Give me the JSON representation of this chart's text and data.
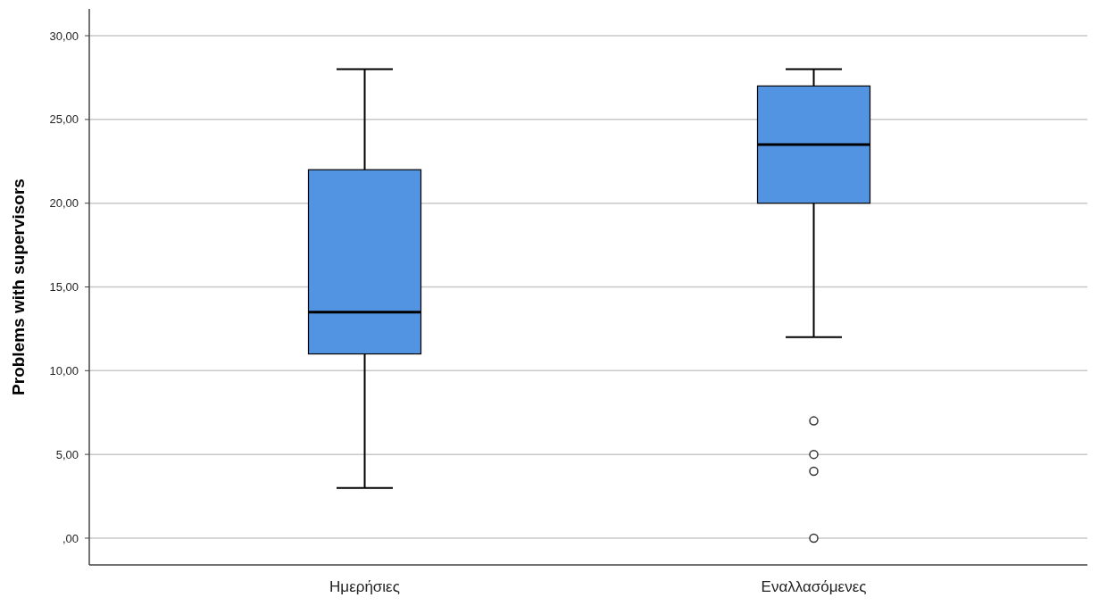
{
  "chart_data": {
    "type": "box",
    "ylabel": "Problems with supervisors",
    "categories": [
      "Ημερήσιες",
      "Εναλλασόμενες"
    ],
    "boxes": [
      {
        "low": 3,
        "q1": 11,
        "median": 13.5,
        "q3": 22,
        "high": 28
      },
      {
        "low": 12,
        "q1": 20,
        "median": 23.5,
        "q3": 27,
        "high": 28,
        "outliers": [
          7,
          5,
          4,
          0
        ]
      }
    ],
    "color": "#5294e2",
    "ylim": [
      -1.6,
      31.6
    ],
    "yticks": [
      {
        "value": 0,
        "label": ",00"
      },
      {
        "value": 5,
        "label": "5,00"
      },
      {
        "value": 10,
        "label": "10,00"
      },
      {
        "value": 15,
        "label": "15,00"
      },
      {
        "value": 20,
        "label": "20,00"
      },
      {
        "value": 25,
        "label": "25,00"
      },
      {
        "value": 30,
        "label": "30,00"
      }
    ],
    "grid": "y"
  }
}
